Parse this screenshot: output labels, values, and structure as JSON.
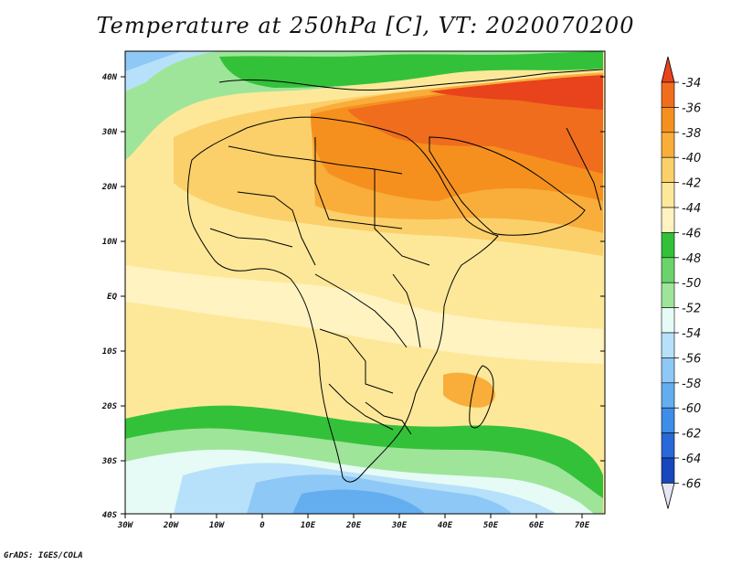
{
  "title": "Temperature at 250hPa [C], VT: 2020070200",
  "footer": "GrADS: IGES/COLA",
  "axes": {
    "lat_ticks": [
      "40N",
      "30N",
      "20N",
      "10N",
      "EQ",
      "10S",
      "20S",
      "30S",
      "40S"
    ],
    "lon_ticks": [
      "30W",
      "20W",
      "10W",
      "0",
      "10E",
      "20E",
      "30E",
      "40E",
      "50E",
      "60E",
      "70E"
    ]
  },
  "colorbar": {
    "levels": [
      "-34",
      "-36",
      "-38",
      "-40",
      "-42",
      "-44",
      "-46",
      "-48",
      "-50",
      "-52",
      "-54",
      "-56",
      "-58",
      "-60",
      "-62",
      "-64",
      "-66"
    ],
    "colors": [
      "#e8431c",
      "#f06d1e",
      "#f5901f",
      "#f9ad3b",
      "#fbd06a",
      "#fde89a",
      "#fff3c2",
      "#34c13a",
      "#6ad46b",
      "#9ee59a",
      "#e6fbf6",
      "#b7e1fa",
      "#8ec8f6",
      "#64aef0",
      "#3e8de6",
      "#2868d8",
      "#1746bd",
      "#0a2488"
    ]
  }
}
